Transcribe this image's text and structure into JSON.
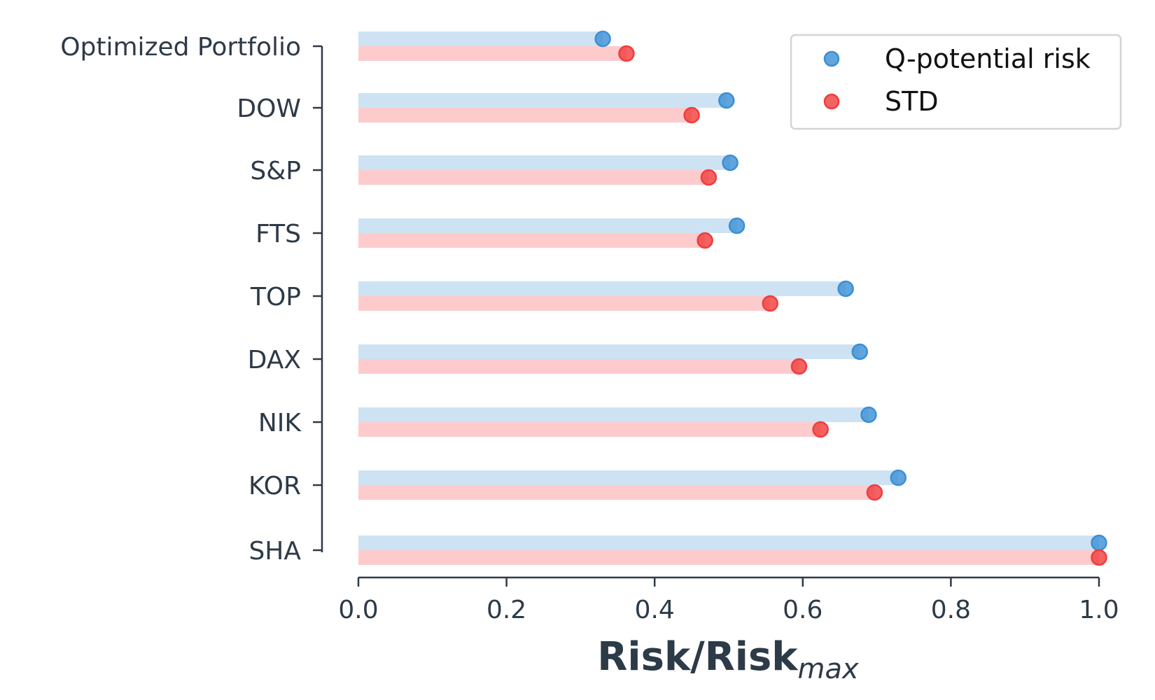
{
  "chart_data": {
    "type": "bar",
    "orientation": "horizontal",
    "style": "dumbbell-lollipop",
    "categories": [
      "Optimized Portfolio",
      "DOW",
      "S&P",
      "FTS",
      "TOP",
      "DAX",
      "NIK",
      "KOR",
      "SHA"
    ],
    "series": [
      {
        "name": "Q-potential risk",
        "color": "#3b8fd4",
        "bar_color": "#cde3f3",
        "values": [
          0.33,
          0.497,
          0.502,
          0.511,
          0.658,
          0.677,
          0.689,
          0.729,
          1.0
        ]
      },
      {
        "name": "STD",
        "color": "#f03c3c",
        "bar_color": "#fecbcc",
        "values": [
          0.362,
          0.45,
          0.473,
          0.468,
          0.556,
          0.595,
          0.624,
          0.697,
          1.0
        ]
      }
    ],
    "xlabel": "Risk/Risk",
    "xlabel_subscript": "max",
    "xlim": [
      0,
      1
    ],
    "xticks": [
      "0.0",
      "0.2",
      "0.4",
      "0.6",
      "0.8",
      "1.0"
    ],
    "grid": false,
    "legend_position": "top-right"
  }
}
